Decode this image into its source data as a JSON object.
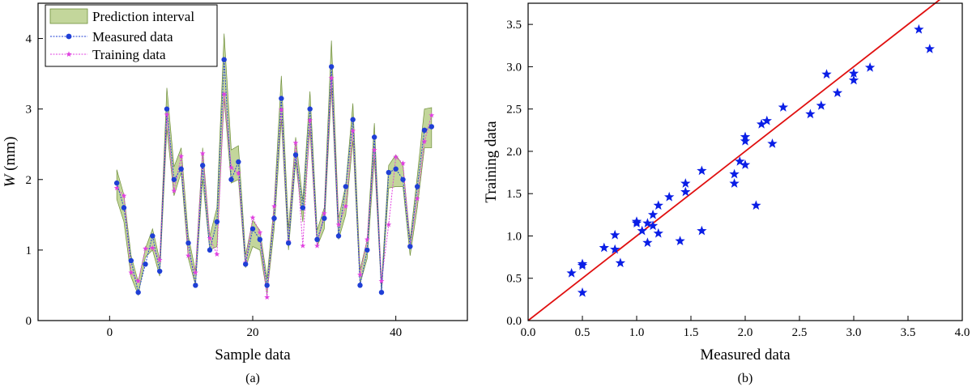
{
  "chart_data": [
    {
      "type": "line",
      "panel_label": "(a)",
      "xlabel": "Sample data",
      "ylabel_italic": "W",
      "ylabel_unit": " (mm)",
      "xlim": [
        -10,
        50
      ],
      "ylim": [
        0,
        4.5
      ],
      "xticks": [
        0,
        20,
        40
      ],
      "yticks": [
        0,
        1,
        2,
        3,
        4
      ],
      "legend_position": "top-left",
      "x": [
        1,
        2,
        3,
        4,
        5,
        6,
        7,
        8,
        9,
        10,
        11,
        12,
        13,
        14,
        15,
        16,
        17,
        18,
        19,
        20,
        21,
        22,
        23,
        24,
        25,
        26,
        27,
        28,
        29,
        30,
        31,
        32,
        33,
        34,
        35,
        36,
        37,
        38,
        39,
        40,
        41,
        42,
        43,
        44,
        45
      ],
      "series": [
        {
          "name": "Prediction interval",
          "kind": "band",
          "color": "#c3d69b",
          "edge": "#6f8f3a",
          "lower": [
            1.72,
            1.4,
            0.62,
            0.36,
            0.9,
            1.0,
            0.63,
            2.72,
            1.77,
            2.1,
            0.88,
            0.5,
            2.0,
            1.0,
            1.05,
            3.15,
            1.95,
            2.0,
            0.75,
            1.05,
            1.0,
            0.38,
            1.3,
            2.85,
            1.0,
            2.25,
            1.4,
            2.7,
            1.05,
            1.3,
            3.3,
            1.15,
            1.5,
            2.55,
            0.52,
            0.88,
            2.3,
            0.4,
            1.88,
            1.9,
            1.9,
            0.92,
            1.6,
            2.45,
            2.45
          ],
          "upper": [
            2.14,
            1.78,
            0.92,
            0.55,
            1.02,
            1.3,
            0.86,
            3.3,
            2.18,
            2.45,
            1.2,
            0.7,
            2.45,
            1.2,
            1.6,
            4.07,
            2.42,
            2.48,
            0.93,
            1.42,
            1.28,
            0.6,
            1.65,
            3.47,
            1.3,
            2.6,
            1.7,
            3.25,
            1.28,
            1.6,
            3.97,
            1.45,
            1.92,
            3.08,
            0.72,
            1.15,
            2.8,
            0.52,
            2.2,
            2.35,
            2.2,
            1.15,
            2.05,
            3.0,
            3.02
          ]
        },
        {
          "name": "Measured data",
          "color": "#1f3fd6",
          "values": [
            1.95,
            1.6,
            0.85,
            0.4,
            0.8,
            1.2,
            0.7,
            3.0,
            2.0,
            2.15,
            1.1,
            0.5,
            2.2,
            1.0,
            1.4,
            3.7,
            2.0,
            2.25,
            0.8,
            1.3,
            1.15,
            0.5,
            1.45,
            3.15,
            1.1,
            2.35,
            1.6,
            3.0,
            1.15,
            1.45,
            3.6,
            1.2,
            1.9,
            2.85,
            0.5,
            1.0,
            2.6,
            0.4,
            2.1,
            2.15,
            2.0,
            1.05,
            1.9,
            2.7,
            2.75
          ]
        },
        {
          "name": "Training data",
          "color": "#e040e0",
          "values": [
            1.88,
            1.77,
            0.68,
            0.56,
            1.02,
            1.03,
            0.86,
            2.92,
            1.84,
            2.33,
            0.92,
            0.68,
            2.37,
            1.17,
            0.94,
            3.21,
            2.17,
            2.09,
            0.82,
            1.46,
            1.25,
            0.33,
            1.62,
            2.99,
            1.12,
            2.52,
            1.06,
            2.84,
            1.06,
            1.52,
            3.44,
            1.36,
            1.62,
            2.69,
            0.65,
            1.15,
            2.42,
            0.56,
            1.36,
            2.32,
            2.23,
            1.06,
            1.73,
            2.54,
            2.91
          ]
        }
      ]
    },
    {
      "type": "scatter",
      "panel_label": "(b)",
      "xlabel": "Measured data",
      "ylabel": "Training data",
      "xlim": [
        0,
        4.0
      ],
      "ylim": [
        0,
        3.75
      ],
      "xticks": [
        "0.0",
        "0.5",
        "1.0",
        "1.5",
        "2.0",
        "2.5",
        "3.0",
        "3.5",
        "4.0"
      ],
      "yticks": [
        "0.0",
        "0.5",
        "1.0",
        "1.5",
        "2.0",
        "2.5",
        "3.0",
        "3.5"
      ],
      "marker": "star",
      "marker_color": "#0a1ee6",
      "reference_line": {
        "from": [
          0,
          0
        ],
        "to": [
          4.0,
          4.0
        ],
        "color": "#e01010"
      },
      "points": [
        [
          0.4,
          0.56
        ],
        [
          0.5,
          0.65
        ],
        [
          0.5,
          0.67
        ],
        [
          0.5,
          0.33
        ],
        [
          0.7,
          0.86
        ],
        [
          0.8,
          1.01
        ],
        [
          0.8,
          0.84
        ],
        [
          0.85,
          0.68
        ],
        [
          1.0,
          1.15
        ],
        [
          1.0,
          1.17
        ],
        [
          1.05,
          1.06
        ],
        [
          1.1,
          0.92
        ],
        [
          1.1,
          1.15
        ],
        [
          1.15,
          1.25
        ],
        [
          1.15,
          1.12
        ],
        [
          1.2,
          1.36
        ],
        [
          1.2,
          1.03
        ],
        [
          1.3,
          1.46
        ],
        [
          1.4,
          0.94
        ],
        [
          1.45,
          1.52
        ],
        [
          1.45,
          1.62
        ],
        [
          1.6,
          1.77
        ],
        [
          1.6,
          1.06
        ],
        [
          1.9,
          1.73
        ],
        [
          1.9,
          1.62
        ],
        [
          1.95,
          1.88
        ],
        [
          2.0,
          2.17
        ],
        [
          2.0,
          2.12
        ],
        [
          2.0,
          1.84
        ],
        [
          2.1,
          1.36
        ],
        [
          2.15,
          2.32
        ],
        [
          2.2,
          2.36
        ],
        [
          2.25,
          2.09
        ],
        [
          2.35,
          2.52
        ],
        [
          2.6,
          2.44
        ],
        [
          2.7,
          2.54
        ],
        [
          2.75,
          2.91
        ],
        [
          2.85,
          2.69
        ],
        [
          3.0,
          2.84
        ],
        [
          3.0,
          2.92
        ],
        [
          3.15,
          2.99
        ],
        [
          3.6,
          3.44
        ],
        [
          3.7,
          3.21
        ]
      ]
    }
  ]
}
